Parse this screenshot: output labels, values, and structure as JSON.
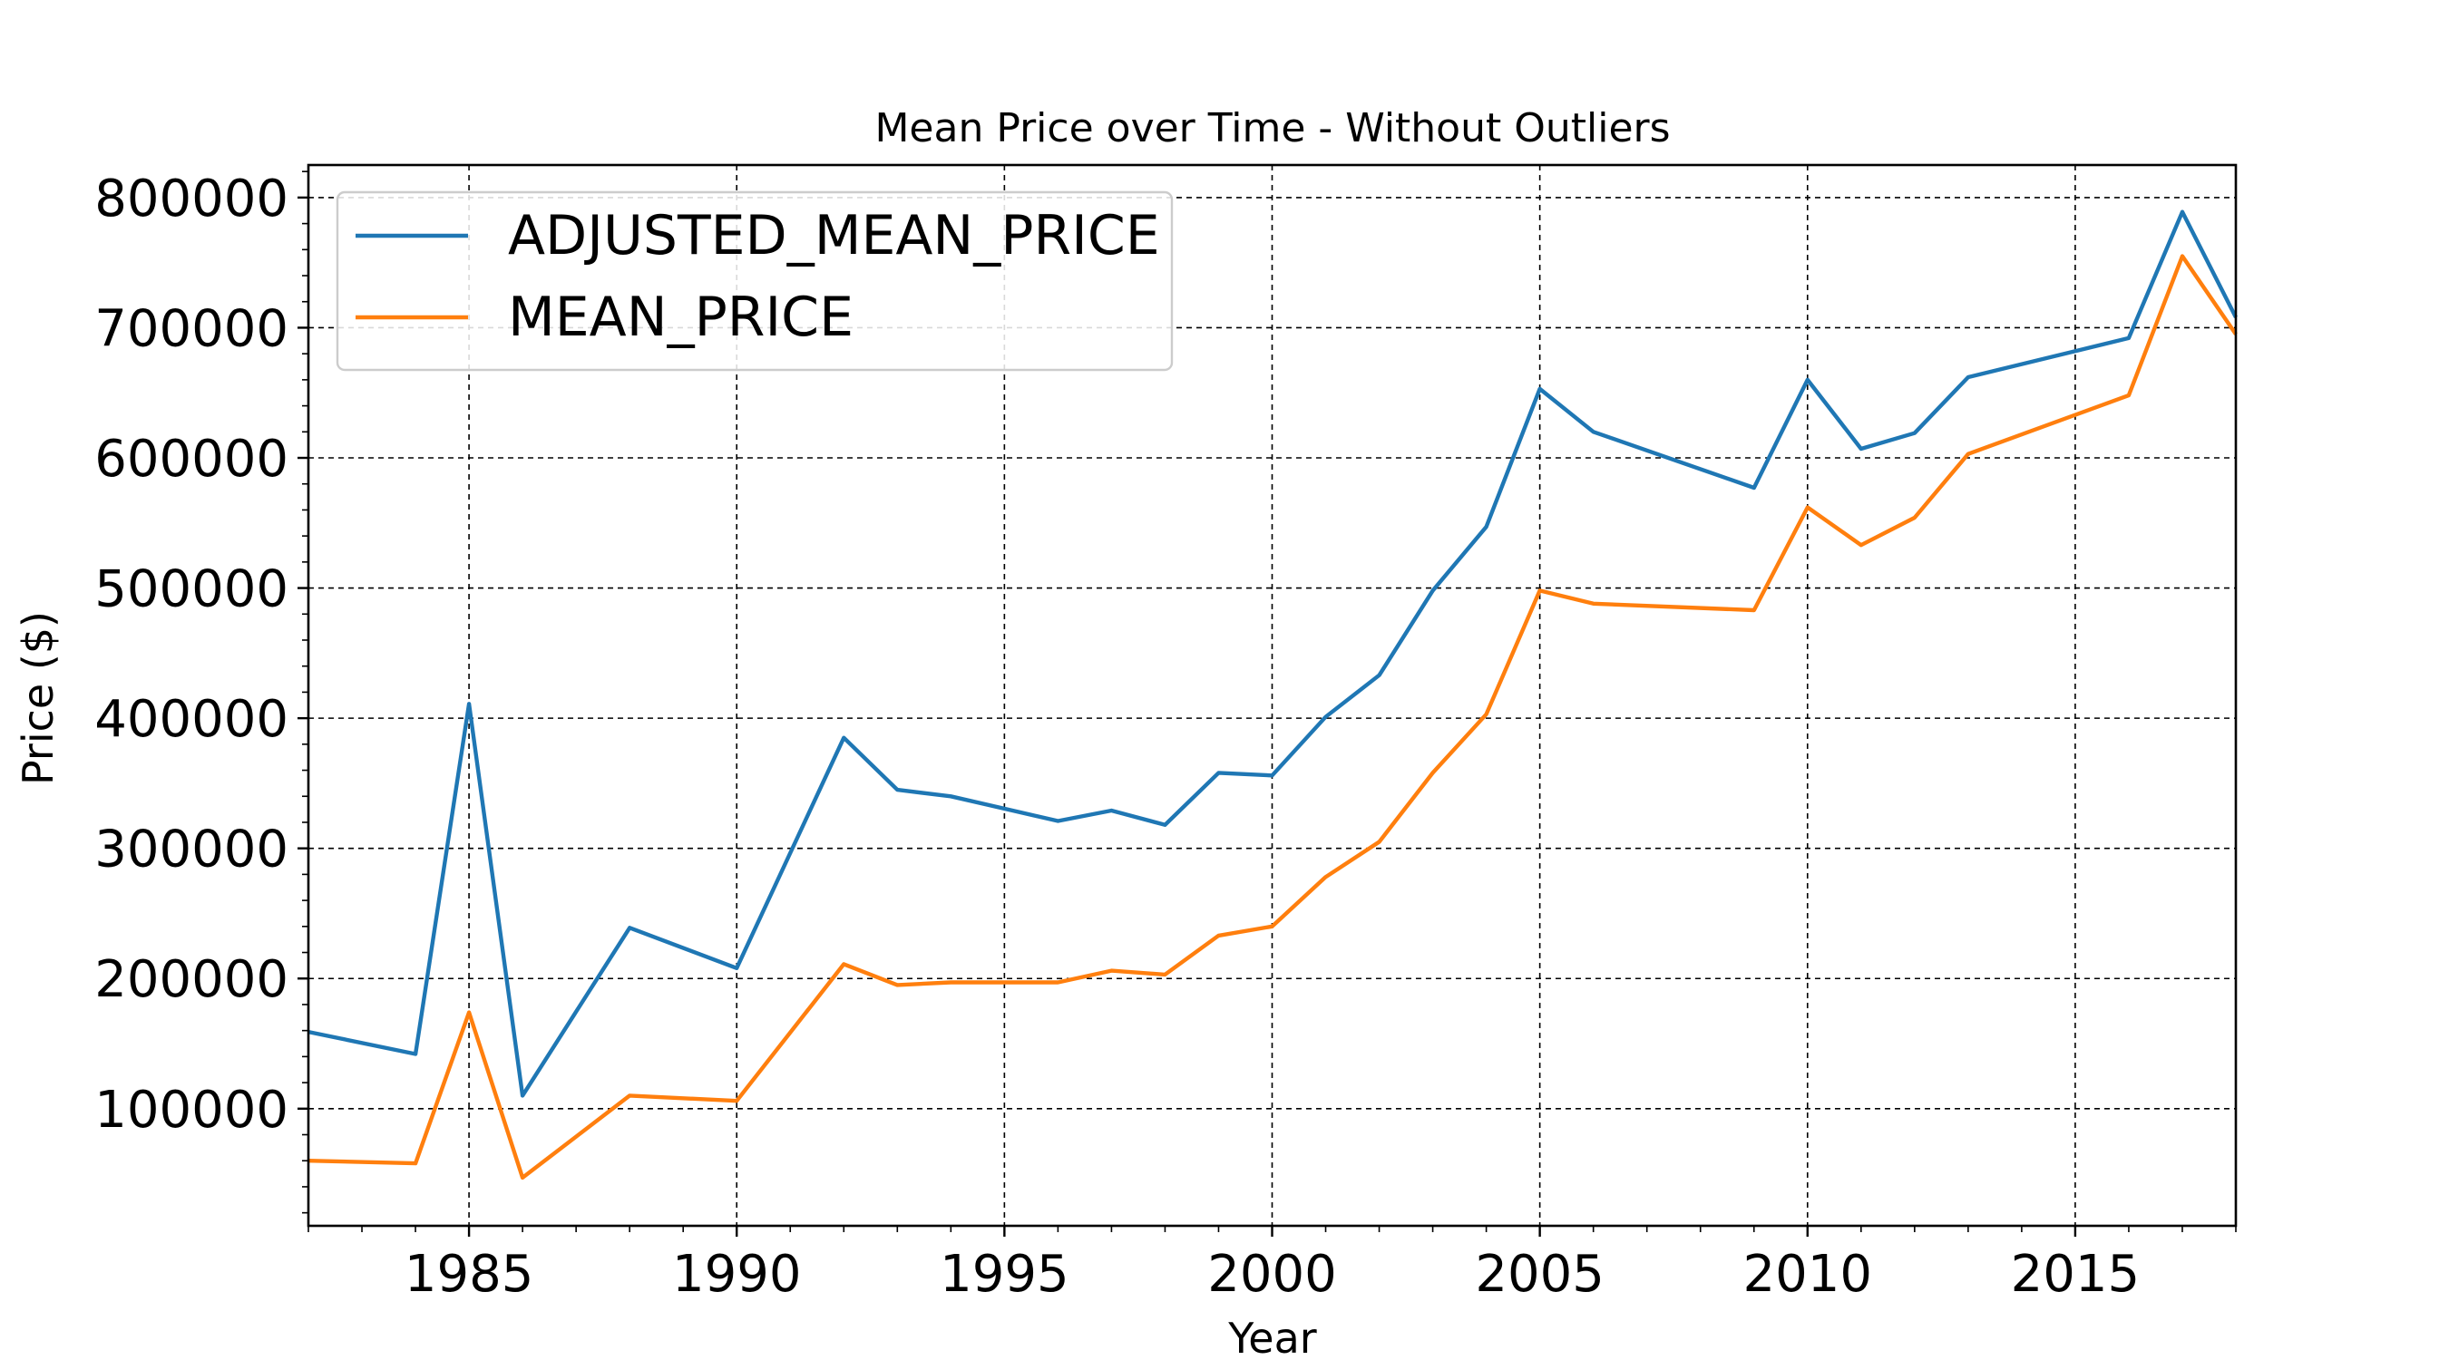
{
  "chart_data": {
    "type": "line",
    "title": "Mean Price over Time - Without Outliers",
    "xlabel": "Year",
    "ylabel": "Price ($)",
    "xlim": [
      1982,
      2018
    ],
    "ylim": [
      10000,
      825000
    ],
    "xticks": [
      1985,
      1990,
      1995,
      2000,
      2005,
      2010,
      2015
    ],
    "yticks": [
      100000,
      200000,
      300000,
      400000,
      500000,
      600000,
      700000,
      800000
    ],
    "xtick_labels": [
      "1985",
      "1990",
      "1995",
      "2000",
      "2005",
      "2010",
      "2015"
    ],
    "ytick_labels": [
      "100000",
      "200000",
      "300000",
      "400000",
      "500000",
      "600000",
      "700000",
      "800000"
    ],
    "grid": true,
    "legend_position": "top-left",
    "x": [
      1982,
      1984,
      1985,
      1986,
      1988,
      1990,
      1992,
      1993,
      1994,
      1996,
      1997,
      1998,
      1999,
      2000,
      2001,
      2002,
      2003,
      2004,
      2005,
      2006,
      2009,
      2010,
      2011,
      2012,
      2013,
      2016,
      2017,
      2018
    ],
    "series": [
      {
        "name": "ADJUSTED_MEAN_PRICE",
        "color": "#1f77b4",
        "values": [
          159000,
          142000,
          411000,
          110000,
          239000,
          208000,
          385000,
          345000,
          340000,
          321000,
          329000,
          318000,
          358000,
          356000,
          401000,
          433000,
          498000,
          547000,
          653000,
          620000,
          577000,
          660000,
          607000,
          619000,
          662000,
          692000,
          789000,
          708000
        ]
      },
      {
        "name": "MEAN_PRICE",
        "color": "#ff7f0e",
        "values": [
          60000,
          58000,
          174000,
          47000,
          110000,
          106000,
          211000,
          195000,
          197000,
          197000,
          206000,
          203000,
          233000,
          240000,
          278000,
          305000,
          358000,
          403000,
          498000,
          488000,
          483000,
          562000,
          533000,
          554000,
          603000,
          648000,
          755000,
          695000
        ]
      }
    ]
  }
}
